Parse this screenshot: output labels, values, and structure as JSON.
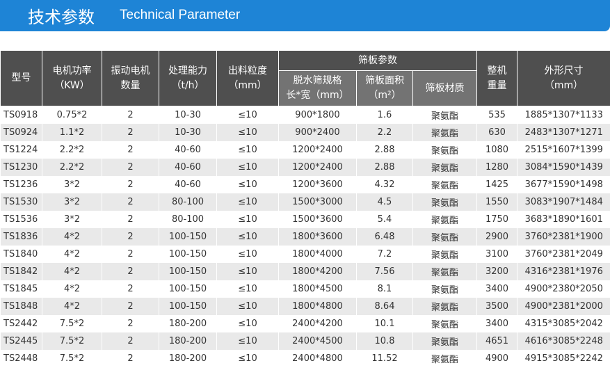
{
  "banner": {
    "title": "技术参数",
    "subtitle": "Technical Parameter"
  },
  "table": {
    "group_header": "筛板参数",
    "headers": [
      [
        "型号"
      ],
      [
        "电机功率",
        "（KW）"
      ],
      [
        "振动电机",
        "数量"
      ],
      [
        "处理能力",
        "（t/h）"
      ],
      [
        "出料粒度",
        "（mm）"
      ],
      [
        "脱水筛规格",
        "长*宽（mm）"
      ],
      [
        "筛板面积",
        "（m²）"
      ],
      [
        "筛板材质"
      ],
      [
        "整机",
        "重量"
      ],
      [
        "外形尺寸",
        "（mm）"
      ]
    ],
    "rows": [
      [
        "TS0918",
        "0.75*2",
        "2",
        "10-30",
        "≤10",
        "900*1800",
        "1.6",
        "聚氨酯",
        "535",
        "1885*1307*1133"
      ],
      [
        "TS0924",
        "1.1*2",
        "2",
        "10-30",
        "≤10",
        "900*2400",
        "2.2",
        "聚氨酯",
        "630",
        "2483*1307*1271"
      ],
      [
        "TS1224",
        "2.2*2",
        "2",
        "40-60",
        "≤10",
        "1200*2400",
        "2.88",
        "聚氨酯",
        "1080",
        "2515*1607*1399"
      ],
      [
        "TS1230",
        "2.2*2",
        "2",
        "40-60",
        "≤10",
        "1200*2400",
        "2.88",
        "聚氨酯",
        "1280",
        "3084*1590*1439"
      ],
      [
        "TS1236",
        "3*2",
        "2",
        "40-60",
        "≤10",
        "1200*3600",
        "4.32",
        "聚氨酯",
        "1425",
        "3677*1590*1498"
      ],
      [
        "TS1530",
        "3*2",
        "2",
        "80-100",
        "≤10",
        "1500*3000",
        "4.5",
        "聚氨酯",
        "1550",
        "3083*1907*1484"
      ],
      [
        "TS1536",
        "3*2",
        "2",
        "80-100",
        "≤10",
        "1500*3600",
        "5.4",
        "聚氨酯",
        "1750",
        "3683*1890*1601"
      ],
      [
        "TS1836",
        "4*2",
        "2",
        "100-150",
        "≤10",
        "1800*3600",
        "6.48",
        "聚氨酯",
        "2900",
        "3760*2381*1900"
      ],
      [
        "TS1840",
        "4*2",
        "2",
        "100-150",
        "≤10",
        "1800*4000",
        "7.2",
        "聚氨酯",
        "3100",
        "3760*2381*2049"
      ],
      [
        "TS1842",
        "4*2",
        "2",
        "100-150",
        "≤10",
        "1800*4200",
        "7.56",
        "聚氨酯",
        "3200",
        "4316*2381*1976"
      ],
      [
        "TS1845",
        "4*2",
        "2",
        "100-150",
        "≤10",
        "1800*4500",
        "8.1",
        "聚氨酯",
        "3400",
        "4900*2380*2050"
      ],
      [
        "TS1848",
        "4*2",
        "2",
        "100-150",
        "≤10",
        "1800*4800",
        "8.64",
        "聚氨酯",
        "3500",
        "4900*2381*2000"
      ],
      [
        "TS2442",
        "7.5*2",
        "2",
        "180-200",
        "≤10",
        "2400*4200",
        "10.1",
        "聚氨酯",
        "3400",
        "4315*3085*2042"
      ],
      [
        "TS2445",
        "7.5*2",
        "2",
        "180-200",
        "≤10",
        "2400*4500",
        "10.8",
        "聚氨酯",
        "4651",
        "4616*3085*2248"
      ],
      [
        "TS2448",
        "7.5*2",
        "2",
        "180-200",
        "≤10",
        "2400*4800",
        "11.52",
        "聚氨酯",
        "4900",
        "4915*3085*2242"
      ]
    ]
  }
}
